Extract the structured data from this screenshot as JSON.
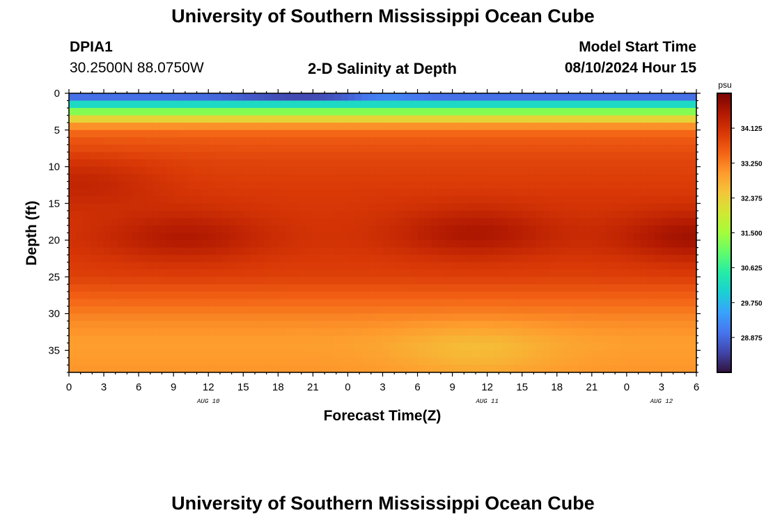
{
  "header": {
    "title_top": "University of Southern Mississippi Ocean Cube",
    "title_bottom": "University of Southern Mississippi Ocean Cube",
    "station_name": "DPIA1",
    "station_coords": "30.2500N  88.0750W",
    "chart_title": "2-D Salinity at Depth",
    "start_label": "Model Start Time",
    "start_value": "08/10/2024 Hour 15"
  },
  "chart_data": {
    "type": "heatmap",
    "title": "2-D Salinity at Depth",
    "xlabel": "Forecast Time(Z)",
    "ylabel": "Depth (ft)",
    "x_range_hours": [
      0,
      54
    ],
    "x_ticks": [
      {
        "h": 0,
        "label": "0"
      },
      {
        "h": 3,
        "label": "3"
      },
      {
        "h": 6,
        "label": "6"
      },
      {
        "h": 9,
        "label": "9"
      },
      {
        "h": 12,
        "label": "12"
      },
      {
        "h": 15,
        "label": "15"
      },
      {
        "h": 18,
        "label": "18"
      },
      {
        "h": 21,
        "label": "21"
      },
      {
        "h": 24,
        "label": "0"
      },
      {
        "h": 27,
        "label": "3"
      },
      {
        "h": 30,
        "label": "6"
      },
      {
        "h": 33,
        "label": "9"
      },
      {
        "h": 36,
        "label": "12"
      },
      {
        "h": 39,
        "label": "15"
      },
      {
        "h": 42,
        "label": "18"
      },
      {
        "h": 45,
        "label": "21"
      },
      {
        "h": 48,
        "label": "0"
      },
      {
        "h": 51,
        "label": "3"
      },
      {
        "h": 54,
        "label": "6"
      }
    ],
    "date_labels": [
      {
        "h": 12,
        "label": "AUG 10"
      },
      {
        "h": 36,
        "label": "AUG 11"
      },
      {
        "h": 51,
        "label": "AUG 12"
      }
    ],
    "y_range_ft": [
      0,
      38
    ],
    "y_ticks": [
      0,
      5,
      10,
      15,
      20,
      25,
      30,
      35
    ],
    "colorbar": {
      "unit": "psu",
      "min": 28.0,
      "max": 35.0,
      "ticks": [
        "34.125",
        "33.250",
        "32.375",
        "31.500",
        "30.625",
        "29.750",
        "28.875"
      ]
    },
    "salinity_profile": [
      {
        "depth": 0.0,
        "psu": 28.2
      },
      {
        "depth": 0.8,
        "psu": 29.4
      },
      {
        "depth": 1.8,
        "psu": 30.5
      },
      {
        "depth": 2.8,
        "psu": 31.6
      },
      {
        "depth": 3.8,
        "psu": 32.6
      },
      {
        "depth": 4.8,
        "psu": 33.3
      },
      {
        "depth": 6.0,
        "psu": 33.6
      },
      {
        "depth": 9.0,
        "psu": 33.85
      },
      {
        "depth": 14.0,
        "psu": 34.0
      },
      {
        "depth": 20.0,
        "psu": 34.05
      },
      {
        "depth": 25.0,
        "psu": 33.9
      },
      {
        "depth": 28.0,
        "psu": 33.5
      },
      {
        "depth": 31.0,
        "psu": 33.15
      },
      {
        "depth": 34.0,
        "psu": 32.95
      },
      {
        "depth": 38.0,
        "psu": 33.05
      }
    ],
    "high_salinity_cores": [
      {
        "h": 1,
        "depth": 12,
        "amp": 0.35
      },
      {
        "h": 10,
        "depth": 19.5,
        "amp": 0.45
      },
      {
        "h": 35,
        "depth": 19,
        "amp": 0.5
      },
      {
        "h": 54,
        "depth": 19.5,
        "amp": 0.6
      }
    ],
    "fresh_deep_patch": {
      "h": 35,
      "depth": 35,
      "amp": -0.35
    },
    "colors": {
      "c1": "#30123b",
      "c2": "#4145ab",
      "c3": "#4675ed",
      "c4": "#39a2fc",
      "c5": "#1bcfd4",
      "c6": "#24eca6",
      "c7": "#61fc6c",
      "c8": "#a4fc3b",
      "c9": "#d1e834",
      "c10": "#f3c63a",
      "c11": "#fe9b2d",
      "c12": "#f36315",
      "c13": "#d93806",
      "c14": "#b11901",
      "c15": "#7a0402"
    }
  }
}
